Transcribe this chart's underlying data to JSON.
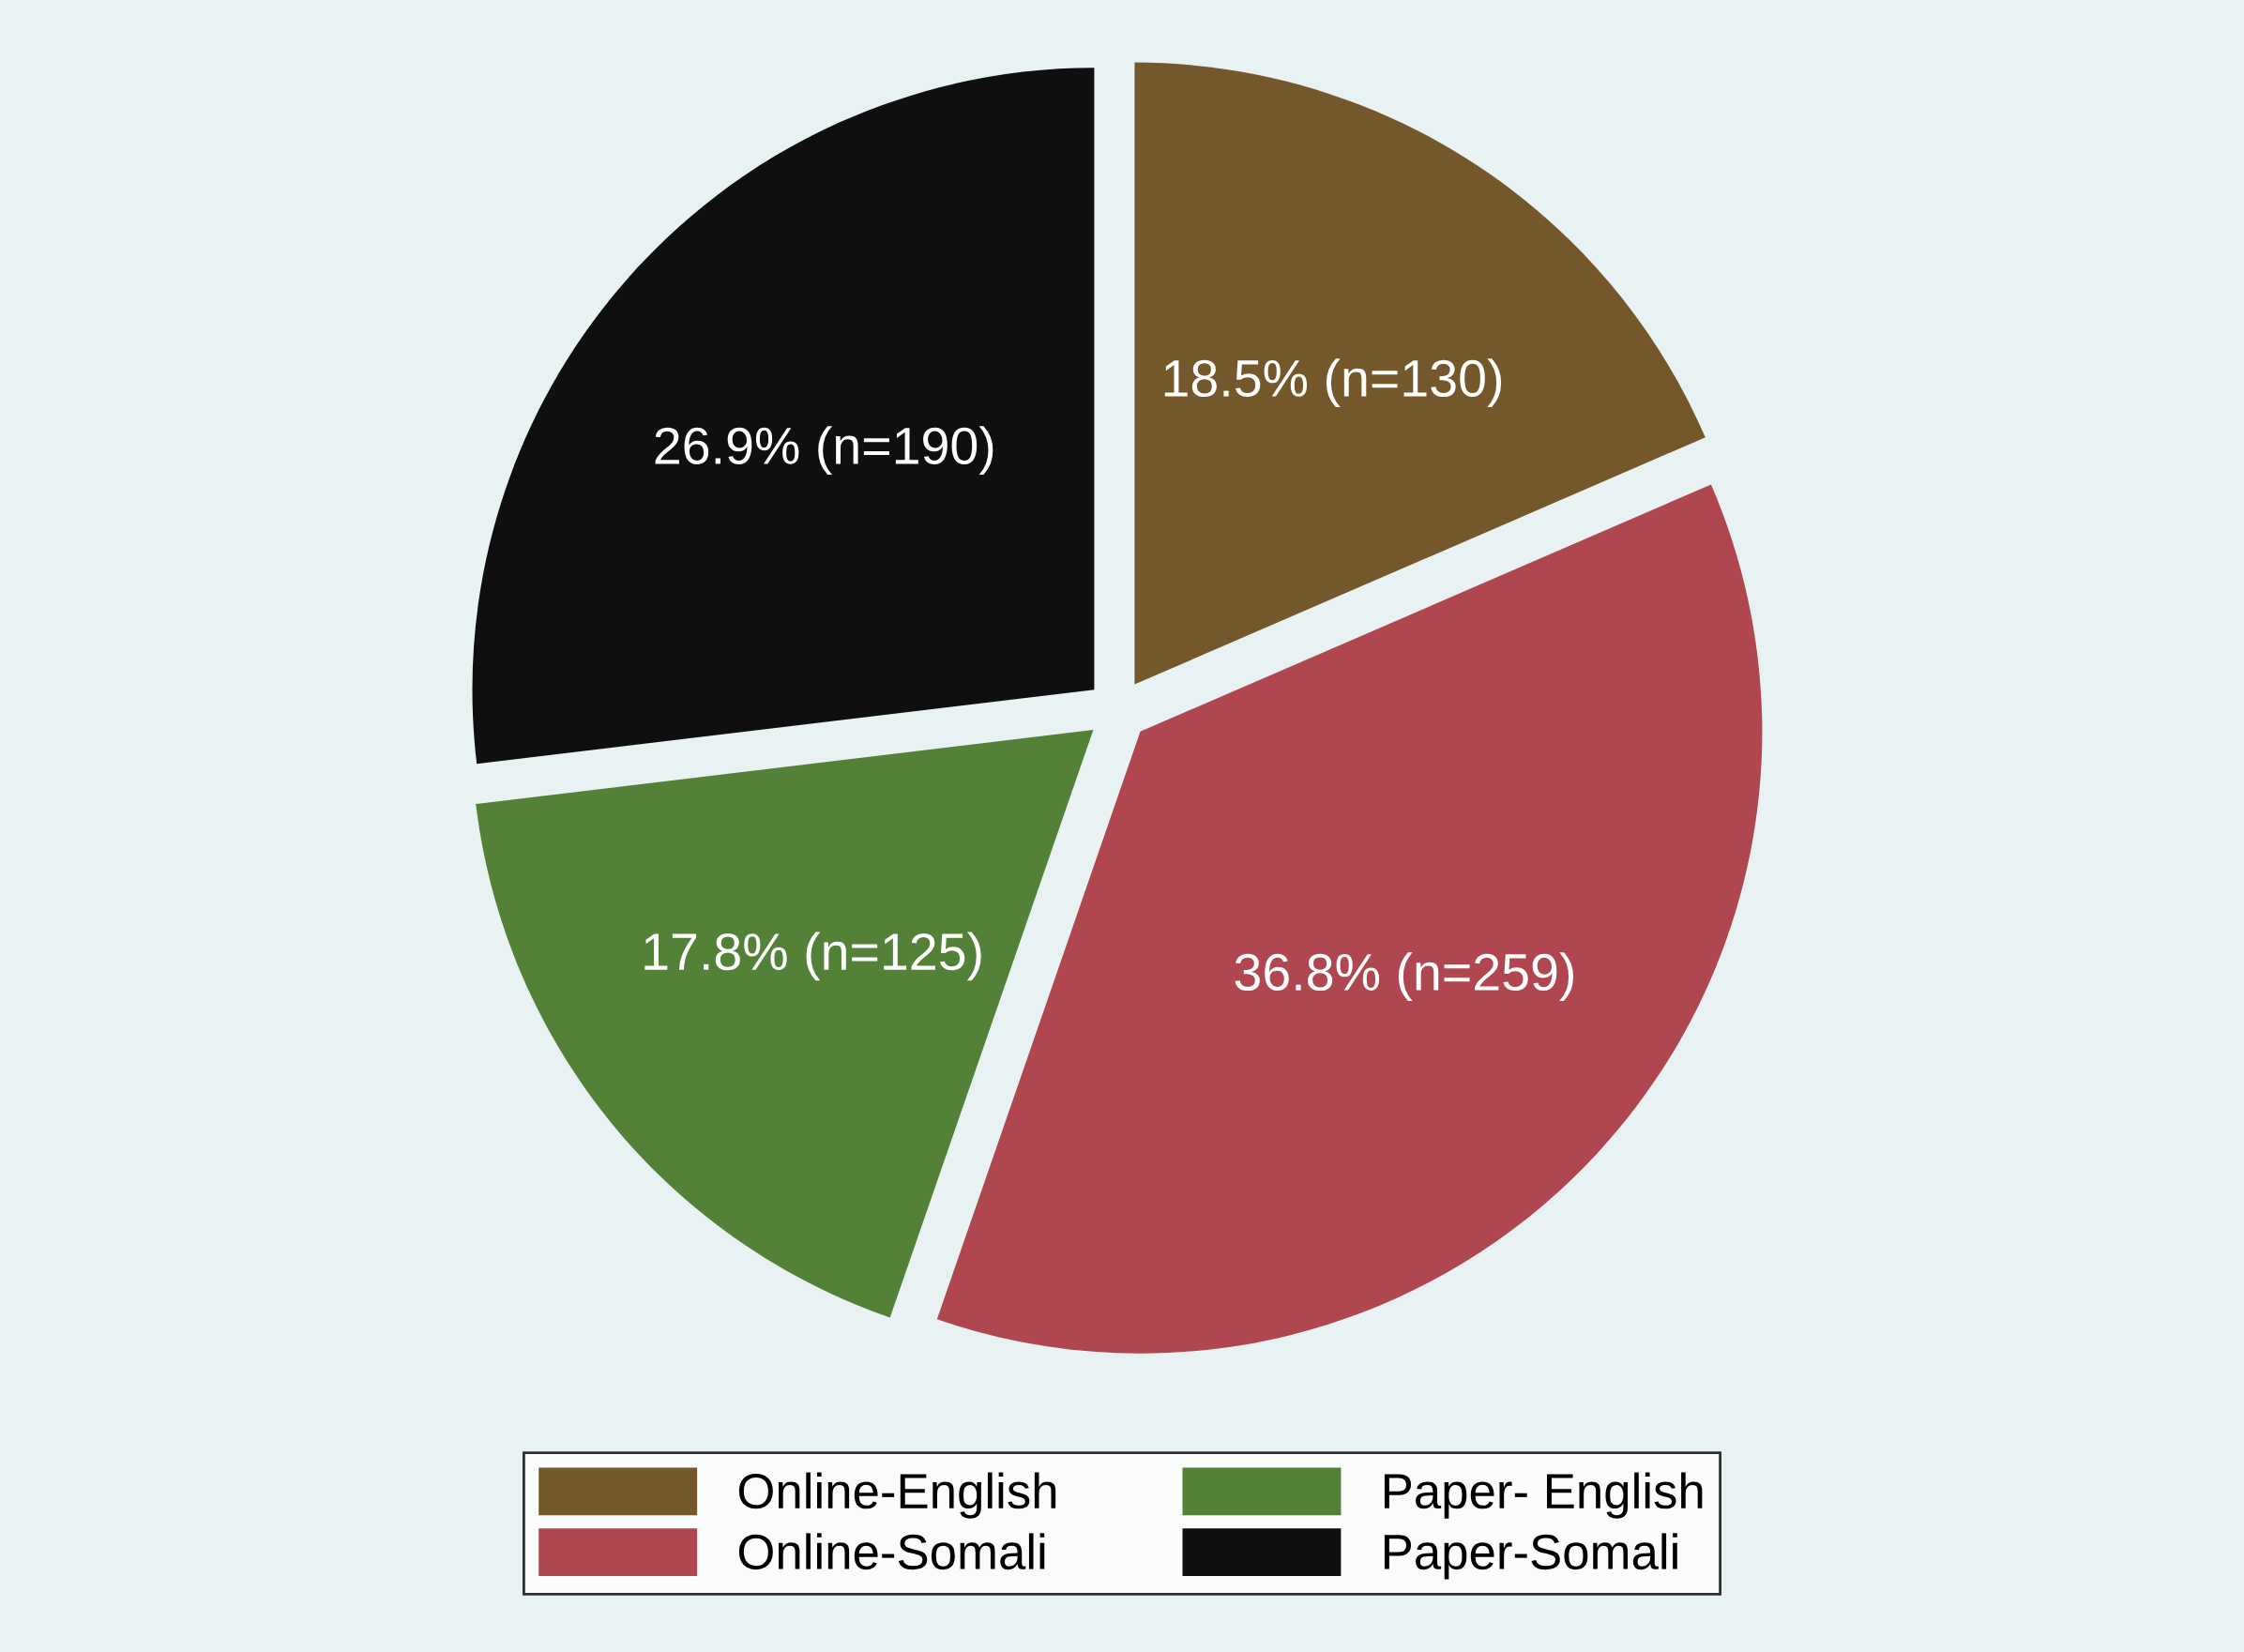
{
  "chart_data": {
    "type": "pie",
    "categories": [
      "Online-English",
      "Online-Somali",
      "Paper- English",
      "Paper-Somali"
    ],
    "values": [
      18.5,
      36.8,
      17.8,
      26.9
    ],
    "colors": [
      "#74572a",
      "#b0464f",
      "#548138",
      "#0f0f0f"
    ],
    "value_labels": [
      "18.5% (n=130)",
      "36.8% (n=259)",
      "17.8% (n=125)",
      "26.9% (n=190)"
    ],
    "legend": "bottom"
  }
}
